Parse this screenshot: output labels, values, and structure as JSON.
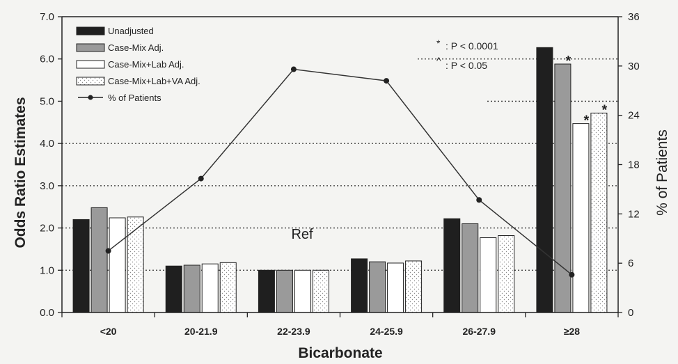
{
  "chart_data": {
    "type": "bar",
    "title": "",
    "xlabel": "Bicarbonate",
    "ylabel": "Odds Ratio Estimates",
    "y2label": "% of Patients",
    "ylim": [
      0,
      7
    ],
    "y2lim": [
      0,
      36
    ],
    "yticks": [
      "0.0",
      "1.0",
      "2.0",
      "3.0",
      "4.0",
      "5.0",
      "6.0",
      "7.0"
    ],
    "y2ticks": [
      "0",
      "6",
      "12",
      "18",
      "24",
      "30",
      "36"
    ],
    "categories": [
      "<20",
      "20-21.9",
      "22-23.9",
      "24-25.9",
      "26-27.9",
      "≥28"
    ],
    "series": [
      {
        "name": "Unadjusted",
        "type": "bar",
        "values": [
          2.2,
          1.1,
          1.0,
          1.27,
          2.22,
          6.27
        ]
      },
      {
        "name": "Case-Mix Adj.",
        "type": "bar",
        "values": [
          2.48,
          1.12,
          1.0,
          1.2,
          2.1,
          5.88
        ]
      },
      {
        "name": "Case-Mix+Lab Adj.",
        "type": "bar",
        "values": [
          2.24,
          1.15,
          1.0,
          1.17,
          1.77,
          4.47
        ]
      },
      {
        "name": "Case-Mix+Lab+VA Adj.",
        "type": "bar",
        "values": [
          2.26,
          1.18,
          1.0,
          1.22,
          1.82,
          4.72
        ]
      },
      {
        "name": "% of Patients",
        "type": "line",
        "axis": "right",
        "values": [
          7.5,
          16.3,
          29.6,
          28.2,
          13.7,
          4.6
        ]
      }
    ],
    "significance": [
      {
        "category": "≥28",
        "series": "Case-Mix Adj.",
        "marker": "*"
      },
      {
        "category": "≥28",
        "series": "Case-Mix+Lab Adj.",
        "marker": "*"
      },
      {
        "category": "≥28",
        "series": "Case-Mix+Lab+VA Adj.",
        "marker": "*"
      }
    ],
    "reference_label": "Ref",
    "notes": [
      {
        "symbol": "*",
        "text": ": P < 0.0001"
      },
      {
        "symbol": "^",
        "text": ": P < 0.05"
      }
    ],
    "grid": true,
    "legend_position": "top-left",
    "colors": {
      "unadjusted": "#1f1f1f",
      "casemix": "#9a9a9a",
      "casemix_lab": "#ffffff",
      "casemix_lab_va": "#ffffff",
      "line": "#333333",
      "background": "#f4f4f2"
    }
  }
}
